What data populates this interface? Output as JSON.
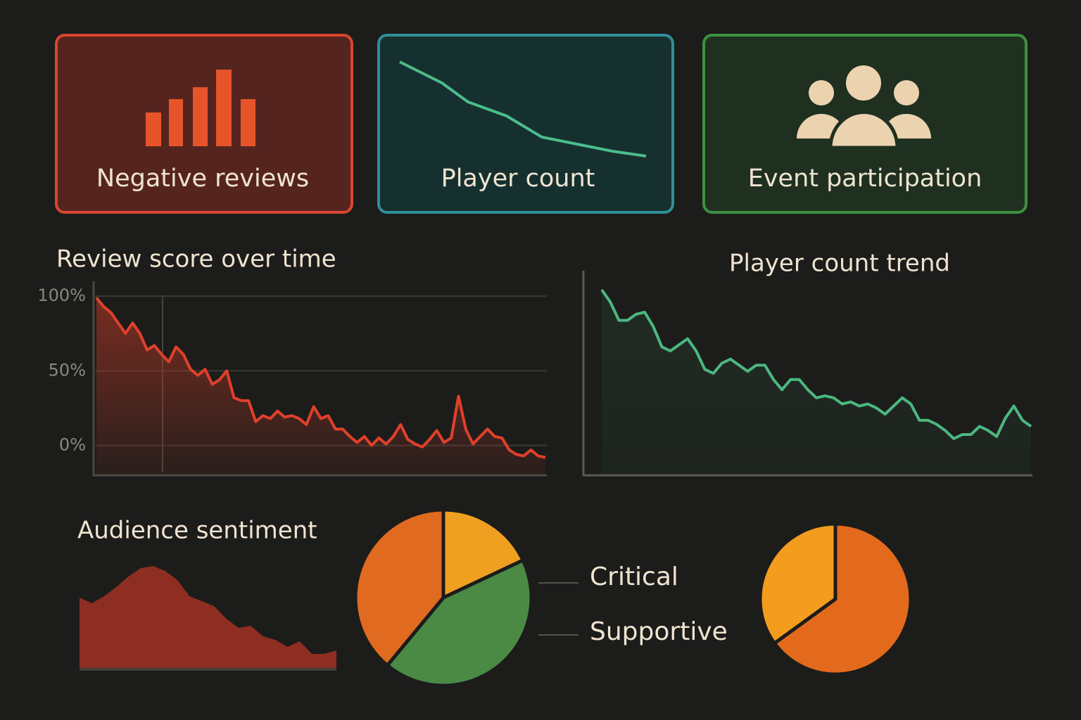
{
  "cards": [
    {
      "label": "Negative reviews"
    },
    {
      "label": "Player count"
    },
    {
      "label": "Event participation"
    }
  ],
  "chart_data": [
    {
      "type": "line",
      "title": "Review score over time",
      "color": "#e0402a",
      "area": true,
      "grid": true,
      "ylim": [
        -20,
        110
      ],
      "yticks": [
        {
          "value": 100,
          "label": "100%"
        },
        {
          "value": 50,
          "label": "50%"
        },
        {
          "value": 0,
          "label": "0%"
        }
      ],
      "values": [
        99,
        93,
        89,
        82,
        75,
        82,
        75,
        64,
        67,
        61,
        56,
        66,
        61,
        51,
        47,
        51,
        41,
        44,
        50,
        32,
        30,
        30,
        16,
        20,
        18,
        23,
        19,
        20,
        18,
        14,
        26,
        18,
        20,
        11,
        11,
        6,
        2,
        6,
        0,
        5,
        1,
        6,
        14,
        4,
        1,
        -1,
        4,
        10,
        2,
        5,
        33,
        11,
        1,
        6,
        11,
        6,
        5,
        -3,
        -6,
        -7,
        -3,
        -7,
        -8
      ]
    },
    {
      "type": "line",
      "title": "Player count trend",
      "color": "#4bb87f",
      "area": true,
      "grid": false,
      "ylim": [
        0,
        100
      ],
      "values": [
        91,
        85,
        76,
        76,
        79,
        80,
        73,
        63,
        61,
        64,
        67,
        61,
        52,
        50,
        55,
        57,
        54,
        51,
        54,
        54,
        47,
        42,
        47,
        47,
        42,
        38,
        39,
        38,
        35,
        36,
        34,
        35,
        33,
        30,
        34,
        38,
        35,
        27,
        27,
        25,
        22,
        18,
        20,
        20,
        24,
        22,
        19,
        28,
        34,
        27,
        24
      ]
    },
    {
      "type": "area",
      "title": "Audience sentiment",
      "color": "#8e2e22",
      "ylim": [
        0,
        150
      ],
      "values": [
        100,
        92,
        102,
        115,
        130,
        142,
        145,
        138,
        125,
        102,
        95,
        88,
        70,
        57,
        60,
        45,
        40,
        30,
        38,
        20,
        20,
        25
      ]
    },
    {
      "type": "pie",
      "values": [
        18,
        43,
        39
      ],
      "colors": [
        "#f0a020",
        "#4a8a45",
        "#e06b20"
      ]
    },
    {
      "type": "pie",
      "values": [
        65,
        35
      ],
      "colors": [
        "#e36a1c",
        "#f39c1e"
      ]
    }
  ],
  "legend": [
    "Critical",
    "Supportive"
  ]
}
